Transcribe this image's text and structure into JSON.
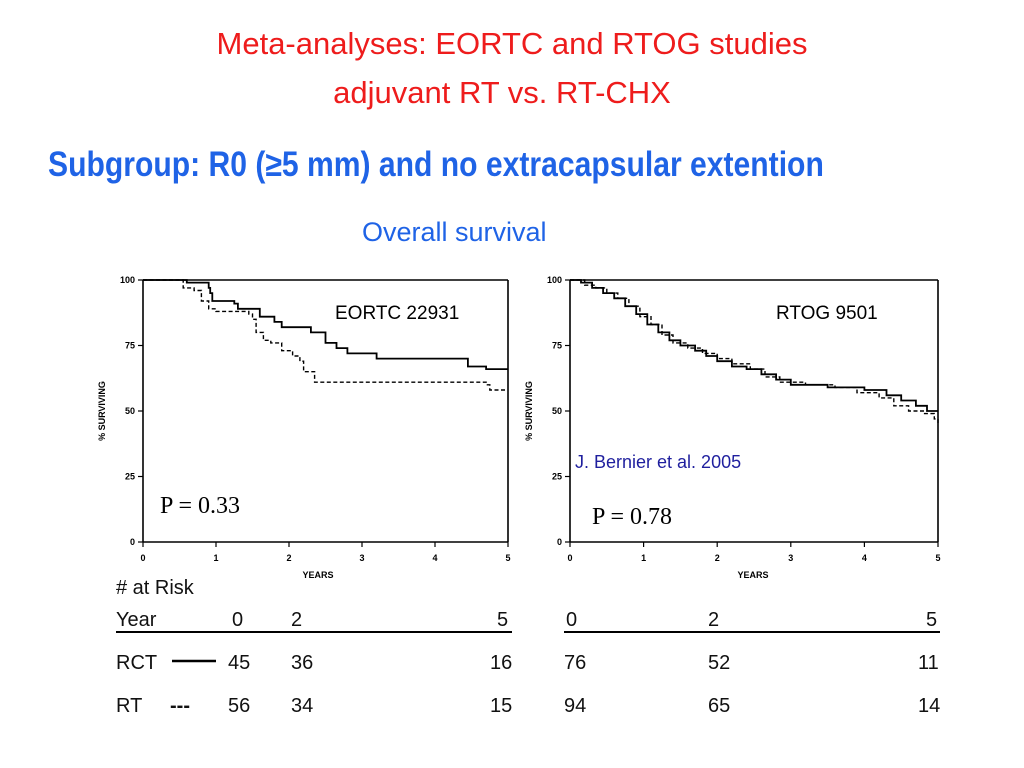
{
  "slide": {
    "title_line1": "Meta-analyses: EORTC and RTOG studies",
    "title_line2": "adjuvant RT vs. RT-CHX",
    "subtitle": "Subgroup: R0 (≥5 mm) and no extracapsular extention",
    "section_label": "Overall survival",
    "citation": "J. Bernier  et al. 2005",
    "colors": {
      "title": "#ee1c1c",
      "subtitle": "#1f63e6",
      "citation": "#1f1f9e"
    }
  },
  "risk_table": {
    "header": "# at Risk",
    "year_label": "Year",
    "rct_label": "RCT",
    "rt_label": "RT",
    "rct_legend_symbol": "line",
    "rt_legend_symbol": "---"
  },
  "chart_data": [
    {
      "type": "line",
      "title": "EORTC 22931",
      "p_value_text": "P = 0.33",
      "xlabel": "YEARS",
      "ylabel": "% SURVIVING",
      "xlim": [
        0,
        5
      ],
      "ylim": [
        0,
        100
      ],
      "xticks": [
        "0",
        "1",
        "2",
        "3",
        "4",
        "5"
      ],
      "yticks": [
        "0",
        "25",
        "50",
        "75",
        "100"
      ],
      "series": [
        {
          "name": "RCT",
          "style": "solid",
          "x": [
            0,
            0.45,
            0.6,
            0.88,
            0.9,
            0.92,
            0.95,
            1.0,
            1.25,
            1.3,
            1.6,
            1.8,
            1.9,
            2.3,
            2.5,
            2.65,
            2.8,
            3.2,
            4.0,
            4.45,
            4.7,
            4.95,
            5.0
          ],
          "y": [
            100,
            100,
            99,
            99,
            97,
            95,
            92,
            92,
            91,
            89,
            86,
            84,
            82,
            80,
            76,
            74,
            72,
            70,
            70,
            67,
            66,
            66,
            66
          ]
        },
        {
          "name": "RT",
          "style": "dashed",
          "x": [
            0,
            0.4,
            0.55,
            0.7,
            0.8,
            0.9,
            1.0,
            1.2,
            1.45,
            1.5,
            1.55,
            1.65,
            1.75,
            1.9,
            2.05,
            2.15,
            2.2,
            2.35,
            2.5,
            4.6,
            4.7,
            4.75,
            4.9,
            5.0
          ],
          "y": [
            100,
            100,
            97,
            96,
            92,
            89,
            88,
            88,
            87,
            85,
            80,
            77,
            76,
            73,
            71,
            69,
            65,
            61,
            61,
            61,
            60,
            58,
            58,
            58
          ]
        }
      ],
      "at_risk": {
        "years": [
          "0",
          "2",
          "5"
        ],
        "rct": [
          "45",
          "36",
          "16"
        ],
        "rt": [
          "56",
          "34",
          "15"
        ]
      }
    },
    {
      "type": "line",
      "title": "RTOG 9501",
      "p_value_text": "P = 0.78",
      "xlabel": "YEARS",
      "ylabel": "% SURVIVING",
      "xlim": [
        0,
        5
      ],
      "ylim": [
        0,
        100
      ],
      "xticks": [
        "0",
        "1",
        "2",
        "3",
        "4",
        "5"
      ],
      "yticks": [
        "0",
        "25",
        "50",
        "75",
        "100"
      ],
      "series": [
        {
          "name": "RCT",
          "style": "solid",
          "x": [
            0,
            0.15,
            0.3,
            0.45,
            0.6,
            0.75,
            0.9,
            1.05,
            1.2,
            1.35,
            1.5,
            1.7,
            1.85,
            2.0,
            2.2,
            2.4,
            2.6,
            2.8,
            3.0,
            3.5,
            4.0,
            4.3,
            4.5,
            4.7,
            4.85,
            5.0
          ],
          "y": [
            100,
            99,
            97,
            95,
            93,
            90,
            87,
            83,
            80,
            77,
            75,
            73,
            71,
            69,
            67,
            66,
            64,
            62,
            60,
            59,
            58,
            56,
            54,
            52,
            50,
            50
          ]
        },
        {
          "name": "RT",
          "style": "dashed",
          "x": [
            0,
            0.2,
            0.35,
            0.5,
            0.65,
            0.8,
            0.95,
            1.1,
            1.25,
            1.4,
            1.6,
            1.8,
            2.0,
            2.2,
            2.45,
            2.65,
            2.85,
            3.2,
            3.6,
            3.9,
            4.2,
            4.4,
            4.6,
            4.8,
            4.95,
            5.0
          ],
          "y": [
            100,
            98,
            97,
            95,
            93,
            90,
            86,
            83,
            79,
            76,
            74,
            72,
            70,
            68,
            66,
            63,
            61,
            60,
            59,
            57,
            55,
            52,
            50,
            49,
            47,
            45
          ]
        }
      ],
      "at_risk": {
        "years": [
          "0",
          "2",
          "5"
        ],
        "rct": [
          "76",
          "52",
          "11"
        ],
        "rt": [
          "94",
          "65",
          "14"
        ]
      }
    }
  ]
}
